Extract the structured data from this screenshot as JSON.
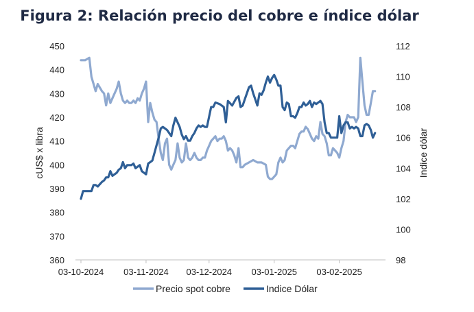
{
  "chart_data": {
    "type": "line",
    "title": "Figura 2: Relación precio del cobre e índice dólar",
    "ylabel_left": "cUS$ x libra",
    "ylabel_right": "Indice dólar",
    "ylim_left": [
      360,
      450
    ],
    "ylim_right": [
      98,
      112
    ],
    "yticks_left": [
      360,
      370,
      380,
      390,
      400,
      410,
      420,
      430,
      440,
      450
    ],
    "yticks_right": [
      98,
      100,
      102,
      104,
      106,
      108,
      110,
      112
    ],
    "x_range": [
      "2024-10-03",
      "2025-02-25"
    ],
    "x_ticks": [
      {
        "date": "2024-10-03",
        "label": "03-10-2024"
      },
      {
        "date": "2024-11-03",
        "label": "03-11-2024"
      },
      {
        "date": "2024-12-03",
        "label": "03-12-2024"
      },
      {
        "date": "2025-01-03",
        "label": "03-01-2025"
      },
      {
        "date": "2025-02-03",
        "label": "03-02-2025"
      }
    ],
    "grid": false,
    "legend_position": "bottom",
    "series": [
      {
        "name": "Precio spot cobre",
        "axis": "left",
        "color": "#8fa9d0",
        "points": [
          [
            "2024-10-03",
            444
          ],
          [
            "2024-10-05",
            444
          ],
          [
            "2024-10-07",
            445
          ],
          [
            "2024-10-08",
            437
          ],
          [
            "2024-10-09",
            434
          ],
          [
            "2024-10-10",
            431
          ],
          [
            "2024-10-11",
            434
          ],
          [
            "2024-10-13",
            431
          ],
          [
            "2024-10-14",
            430
          ],
          [
            "2024-10-15",
            425
          ],
          [
            "2024-10-16",
            430
          ],
          [
            "2024-10-17",
            426
          ],
          [
            "2024-10-18",
            428
          ],
          [
            "2024-10-20",
            432
          ],
          [
            "2024-10-21",
            435
          ],
          [
            "2024-10-22",
            430
          ],
          [
            "2024-10-23",
            427
          ],
          [
            "2024-10-24",
            426
          ],
          [
            "2024-10-25",
            427
          ],
          [
            "2024-10-26",
            426
          ],
          [
            "2024-10-27",
            426
          ],
          [
            "2024-10-28",
            427
          ],
          [
            "2024-10-29",
            426
          ],
          [
            "2024-10-30",
            428
          ],
          [
            "2024-10-31",
            427
          ],
          [
            "2024-11-01",
            430
          ],
          [
            "2024-11-02",
            432
          ],
          [
            "2024-11-03",
            435
          ],
          [
            "2024-11-04",
            418
          ],
          [
            "2024-11-05",
            426
          ],
          [
            "2024-11-06",
            422
          ],
          [
            "2024-11-07",
            419
          ],
          [
            "2024-11-08",
            418
          ],
          [
            "2024-11-09",
            411
          ],
          [
            "2024-11-10",
            405
          ],
          [
            "2024-11-11",
            402
          ],
          [
            "2024-11-12",
            409
          ],
          [
            "2024-11-13",
            411
          ],
          [
            "2024-11-14",
            400
          ],
          [
            "2024-11-15",
            398
          ],
          [
            "2024-11-16",
            400
          ],
          [
            "2024-11-17",
            402
          ],
          [
            "2024-11-18",
            409
          ],
          [
            "2024-11-19",
            403
          ],
          [
            "2024-11-20",
            401
          ],
          [
            "2024-11-21",
            402
          ],
          [
            "2024-11-22",
            409
          ],
          [
            "2024-11-23",
            403
          ],
          [
            "2024-11-24",
            402
          ],
          [
            "2024-11-25",
            403
          ],
          [
            "2024-11-26",
            405
          ],
          [
            "2024-11-27",
            403
          ],
          [
            "2024-11-28",
            402
          ],
          [
            "2024-11-29",
            402
          ],
          [
            "2024-11-30",
            403
          ],
          [
            "2024-12-01",
            403
          ],
          [
            "2024-12-02",
            406
          ],
          [
            "2024-12-03",
            408
          ],
          [
            "2024-12-04",
            410
          ],
          [
            "2024-12-05",
            411
          ],
          [
            "2024-12-06",
            412
          ],
          [
            "2024-12-07",
            410
          ],
          [
            "2024-12-08",
            411
          ],
          [
            "2024-12-09",
            411
          ],
          [
            "2024-12-10",
            412
          ],
          [
            "2024-12-11",
            410
          ],
          [
            "2024-12-12",
            406
          ],
          [
            "2024-12-13",
            407
          ],
          [
            "2024-12-14",
            406
          ],
          [
            "2024-12-15",
            404
          ],
          [
            "2024-12-16",
            401
          ],
          [
            "2024-12-17",
            407
          ],
          [
            "2024-12-18",
            399
          ],
          [
            "2024-12-19",
            399
          ],
          [
            "2024-12-20",
            400
          ],
          [
            "2024-12-22",
            401
          ],
          [
            "2024-12-24",
            402
          ],
          [
            "2024-12-26",
            401
          ],
          [
            "2024-12-28",
            401
          ],
          [
            "2024-12-30",
            400
          ],
          [
            "2024-12-31",
            395
          ],
          [
            "2025-01-01",
            394
          ],
          [
            "2025-01-02",
            394
          ],
          [
            "2025-01-03",
            395
          ],
          [
            "2025-01-04",
            396
          ],
          [
            "2025-01-05",
            401
          ],
          [
            "2025-01-06",
            403
          ],
          [
            "2025-01-07",
            401
          ],
          [
            "2025-01-08",
            402
          ],
          [
            "2025-01-09",
            406
          ],
          [
            "2025-01-10",
            407
          ],
          [
            "2025-01-11",
            408
          ],
          [
            "2025-01-12",
            408
          ],
          [
            "2025-01-13",
            407
          ],
          [
            "2025-01-14",
            410
          ],
          [
            "2025-01-15",
            413
          ],
          [
            "2025-01-16",
            414
          ],
          [
            "2025-01-17",
            414
          ],
          [
            "2025-01-18",
            416
          ],
          [
            "2025-01-19",
            415
          ],
          [
            "2025-01-20",
            413
          ],
          [
            "2025-01-21",
            411
          ],
          [
            "2025-01-22",
            410
          ],
          [
            "2025-01-23",
            412
          ],
          [
            "2025-01-24",
            411
          ],
          [
            "2025-01-25",
            418
          ],
          [
            "2025-01-26",
            413
          ],
          [
            "2025-01-27",
            412
          ],
          [
            "2025-01-28",
            409
          ],
          [
            "2025-01-29",
            404
          ],
          [
            "2025-01-30",
            404
          ],
          [
            "2025-01-31",
            407
          ],
          [
            "2025-02-01",
            406
          ],
          [
            "2025-02-02",
            405
          ],
          [
            "2025-02-03",
            403
          ],
          [
            "2025-02-04",
            407
          ],
          [
            "2025-02-05",
            410
          ],
          [
            "2025-02-06",
            418
          ],
          [
            "2025-02-07",
            421
          ],
          [
            "2025-02-08",
            420
          ],
          [
            "2025-02-09",
            420
          ],
          [
            "2025-02-10",
            420
          ],
          [
            "2025-02-11",
            418
          ],
          [
            "2025-02-12",
            420
          ],
          [
            "2025-02-13",
            445
          ],
          [
            "2025-02-14",
            435
          ],
          [
            "2025-02-15",
            425
          ],
          [
            "2025-02-16",
            421
          ],
          [
            "2025-02-17",
            421
          ],
          [
            "2025-02-18",
            426
          ],
          [
            "2025-02-19",
            431
          ],
          [
            "2025-02-20",
            431
          ]
        ]
      },
      {
        "name": "Indice Dólar",
        "axis": "right",
        "color": "#2f5f96",
        "points": [
          [
            "2024-10-03",
            102.0
          ],
          [
            "2024-10-04",
            102.5
          ],
          [
            "2024-10-06",
            102.5
          ],
          [
            "2024-10-08",
            102.5
          ],
          [
            "2024-10-09",
            102.9
          ],
          [
            "2024-10-10",
            102.9
          ],
          [
            "2024-10-11",
            102.8
          ],
          [
            "2024-10-13",
            103.1
          ],
          [
            "2024-10-14",
            103.2
          ],
          [
            "2024-10-15",
            103.4
          ],
          [
            "2024-10-16",
            103.4
          ],
          [
            "2024-10-17",
            103.8
          ],
          [
            "2024-10-18",
            103.5
          ],
          [
            "2024-10-20",
            103.7
          ],
          [
            "2024-10-21",
            103.9
          ],
          [
            "2024-10-22",
            104.0
          ],
          [
            "2024-10-23",
            104.4
          ],
          [
            "2024-10-24",
            104.0
          ],
          [
            "2024-10-25",
            104.2
          ],
          [
            "2024-10-27",
            104.2
          ],
          [
            "2024-10-28",
            104.3
          ],
          [
            "2024-10-29",
            104.0
          ],
          [
            "2024-10-30",
            104.1
          ],
          [
            "2024-10-31",
            104.2
          ],
          [
            "2024-11-01",
            103.8
          ],
          [
            "2024-11-02",
            103.7
          ],
          [
            "2024-11-03",
            103.6
          ],
          [
            "2024-11-04",
            104.3
          ],
          [
            "2024-11-05",
            104.4
          ],
          [
            "2024-11-06",
            104.5
          ],
          [
            "2024-11-07",
            105.0
          ],
          [
            "2024-11-08",
            105.5
          ],
          [
            "2024-11-09",
            106.0
          ],
          [
            "2024-11-10",
            106.6
          ],
          [
            "2024-11-11",
            106.7
          ],
          [
            "2024-11-12",
            106.6
          ],
          [
            "2024-11-13",
            106.5
          ],
          [
            "2024-11-14",
            106.3
          ],
          [
            "2024-11-15",
            106.1
          ],
          [
            "2024-11-16",
            106.8
          ],
          [
            "2024-11-17",
            107.3
          ],
          [
            "2024-11-18",
            107.0
          ],
          [
            "2024-11-19",
            106.7
          ],
          [
            "2024-11-20",
            106.2
          ],
          [
            "2024-11-21",
            105.9
          ],
          [
            "2024-11-22",
            106.1
          ],
          [
            "2024-11-23",
            105.8
          ],
          [
            "2024-11-24",
            105.8
          ],
          [
            "2024-11-25",
            106.1
          ],
          [
            "2024-11-26",
            106.3
          ],
          [
            "2024-11-27",
            106.6
          ],
          [
            "2024-11-28",
            106.8
          ],
          [
            "2024-11-29",
            106.7
          ],
          [
            "2024-11-30",
            106.8
          ],
          [
            "2024-12-01",
            106.7
          ],
          [
            "2024-12-02",
            106.7
          ],
          [
            "2024-12-04",
            108.0
          ],
          [
            "2024-12-05",
            108.0
          ],
          [
            "2024-12-06",
            108.3
          ],
          [
            "2024-12-08",
            108.2
          ],
          [
            "2024-12-10",
            108.0
          ],
          [
            "2024-12-11",
            107.0
          ],
          [
            "2024-12-12",
            108.4
          ],
          [
            "2024-12-14",
            108.1
          ],
          [
            "2024-12-16",
            108.6
          ],
          [
            "2024-12-17",
            108.7
          ],
          [
            "2024-12-18",
            108.0
          ],
          [
            "2024-12-19",
            108.1
          ],
          [
            "2024-12-20",
            108.5
          ],
          [
            "2024-12-22",
            109.3
          ],
          [
            "2024-12-23",
            109.4
          ],
          [
            "2024-12-24",
            108.9
          ],
          [
            "2024-12-25",
            108.5
          ],
          [
            "2024-12-26",
            108.1
          ],
          [
            "2024-12-27",
            108.9
          ],
          [
            "2024-12-28",
            108.8
          ],
          [
            "2024-12-29",
            109.1
          ],
          [
            "2024-12-30",
            109.6
          ],
          [
            "2024-12-31",
            110.0
          ],
          [
            "2025-01-01",
            109.6
          ],
          [
            "2025-01-02",
            109.9
          ],
          [
            "2025-01-03",
            110.1
          ],
          [
            "2025-01-04",
            109.8
          ],
          [
            "2025-01-05",
            109.4
          ],
          [
            "2025-01-06",
            109.4
          ],
          [
            "2025-01-07",
            108.0
          ],
          [
            "2025-01-08",
            107.8
          ],
          [
            "2025-01-09",
            108.3
          ],
          [
            "2025-01-10",
            108.2
          ],
          [
            "2025-01-11",
            107.4
          ],
          [
            "2025-01-12",
            107.4
          ],
          [
            "2025-01-13",
            107.3
          ],
          [
            "2025-01-14",
            107.6
          ],
          [
            "2025-01-15",
            108.0
          ],
          [
            "2025-01-16",
            108.0
          ],
          [
            "2025-01-17",
            108.3
          ],
          [
            "2025-01-18",
            108.1
          ],
          [
            "2025-01-19",
            108.2
          ],
          [
            "2025-01-20",
            108.4
          ],
          [
            "2025-01-21",
            108.0
          ],
          [
            "2025-01-22",
            108.3
          ],
          [
            "2025-01-23",
            108.2
          ],
          [
            "2025-01-24",
            108.3
          ],
          [
            "2025-01-25",
            108.4
          ],
          [
            "2025-01-26",
            108.2
          ],
          [
            "2025-01-27",
            107.0
          ],
          [
            "2025-01-28",
            106.3
          ],
          [
            "2025-01-29",
            106.3
          ],
          [
            "2025-01-30",
            106.0
          ],
          [
            "2025-01-31",
            106.0
          ],
          [
            "2025-02-01",
            106.0
          ],
          [
            "2025-02-02",
            106.0
          ],
          [
            "2025-02-03",
            107.4
          ],
          [
            "2025-02-04",
            106.3
          ],
          [
            "2025-02-05",
            106.8
          ],
          [
            "2025-02-06",
            107.0
          ],
          [
            "2025-02-07",
            107.0
          ],
          [
            "2025-02-08",
            106.6
          ],
          [
            "2025-02-09",
            106.7
          ],
          [
            "2025-02-10",
            106.6
          ],
          [
            "2025-02-11",
            106.7
          ],
          [
            "2025-02-12",
            106.6
          ],
          [
            "2025-02-13",
            106.1
          ],
          [
            "2025-02-14",
            106.1
          ],
          [
            "2025-02-15",
            106.8
          ],
          [
            "2025-02-16",
            106.9
          ],
          [
            "2025-02-17",
            106.8
          ],
          [
            "2025-02-18",
            106.5
          ],
          [
            "2025-02-19",
            106.0
          ],
          [
            "2025-02-20",
            106.3
          ]
        ]
      }
    ]
  }
}
